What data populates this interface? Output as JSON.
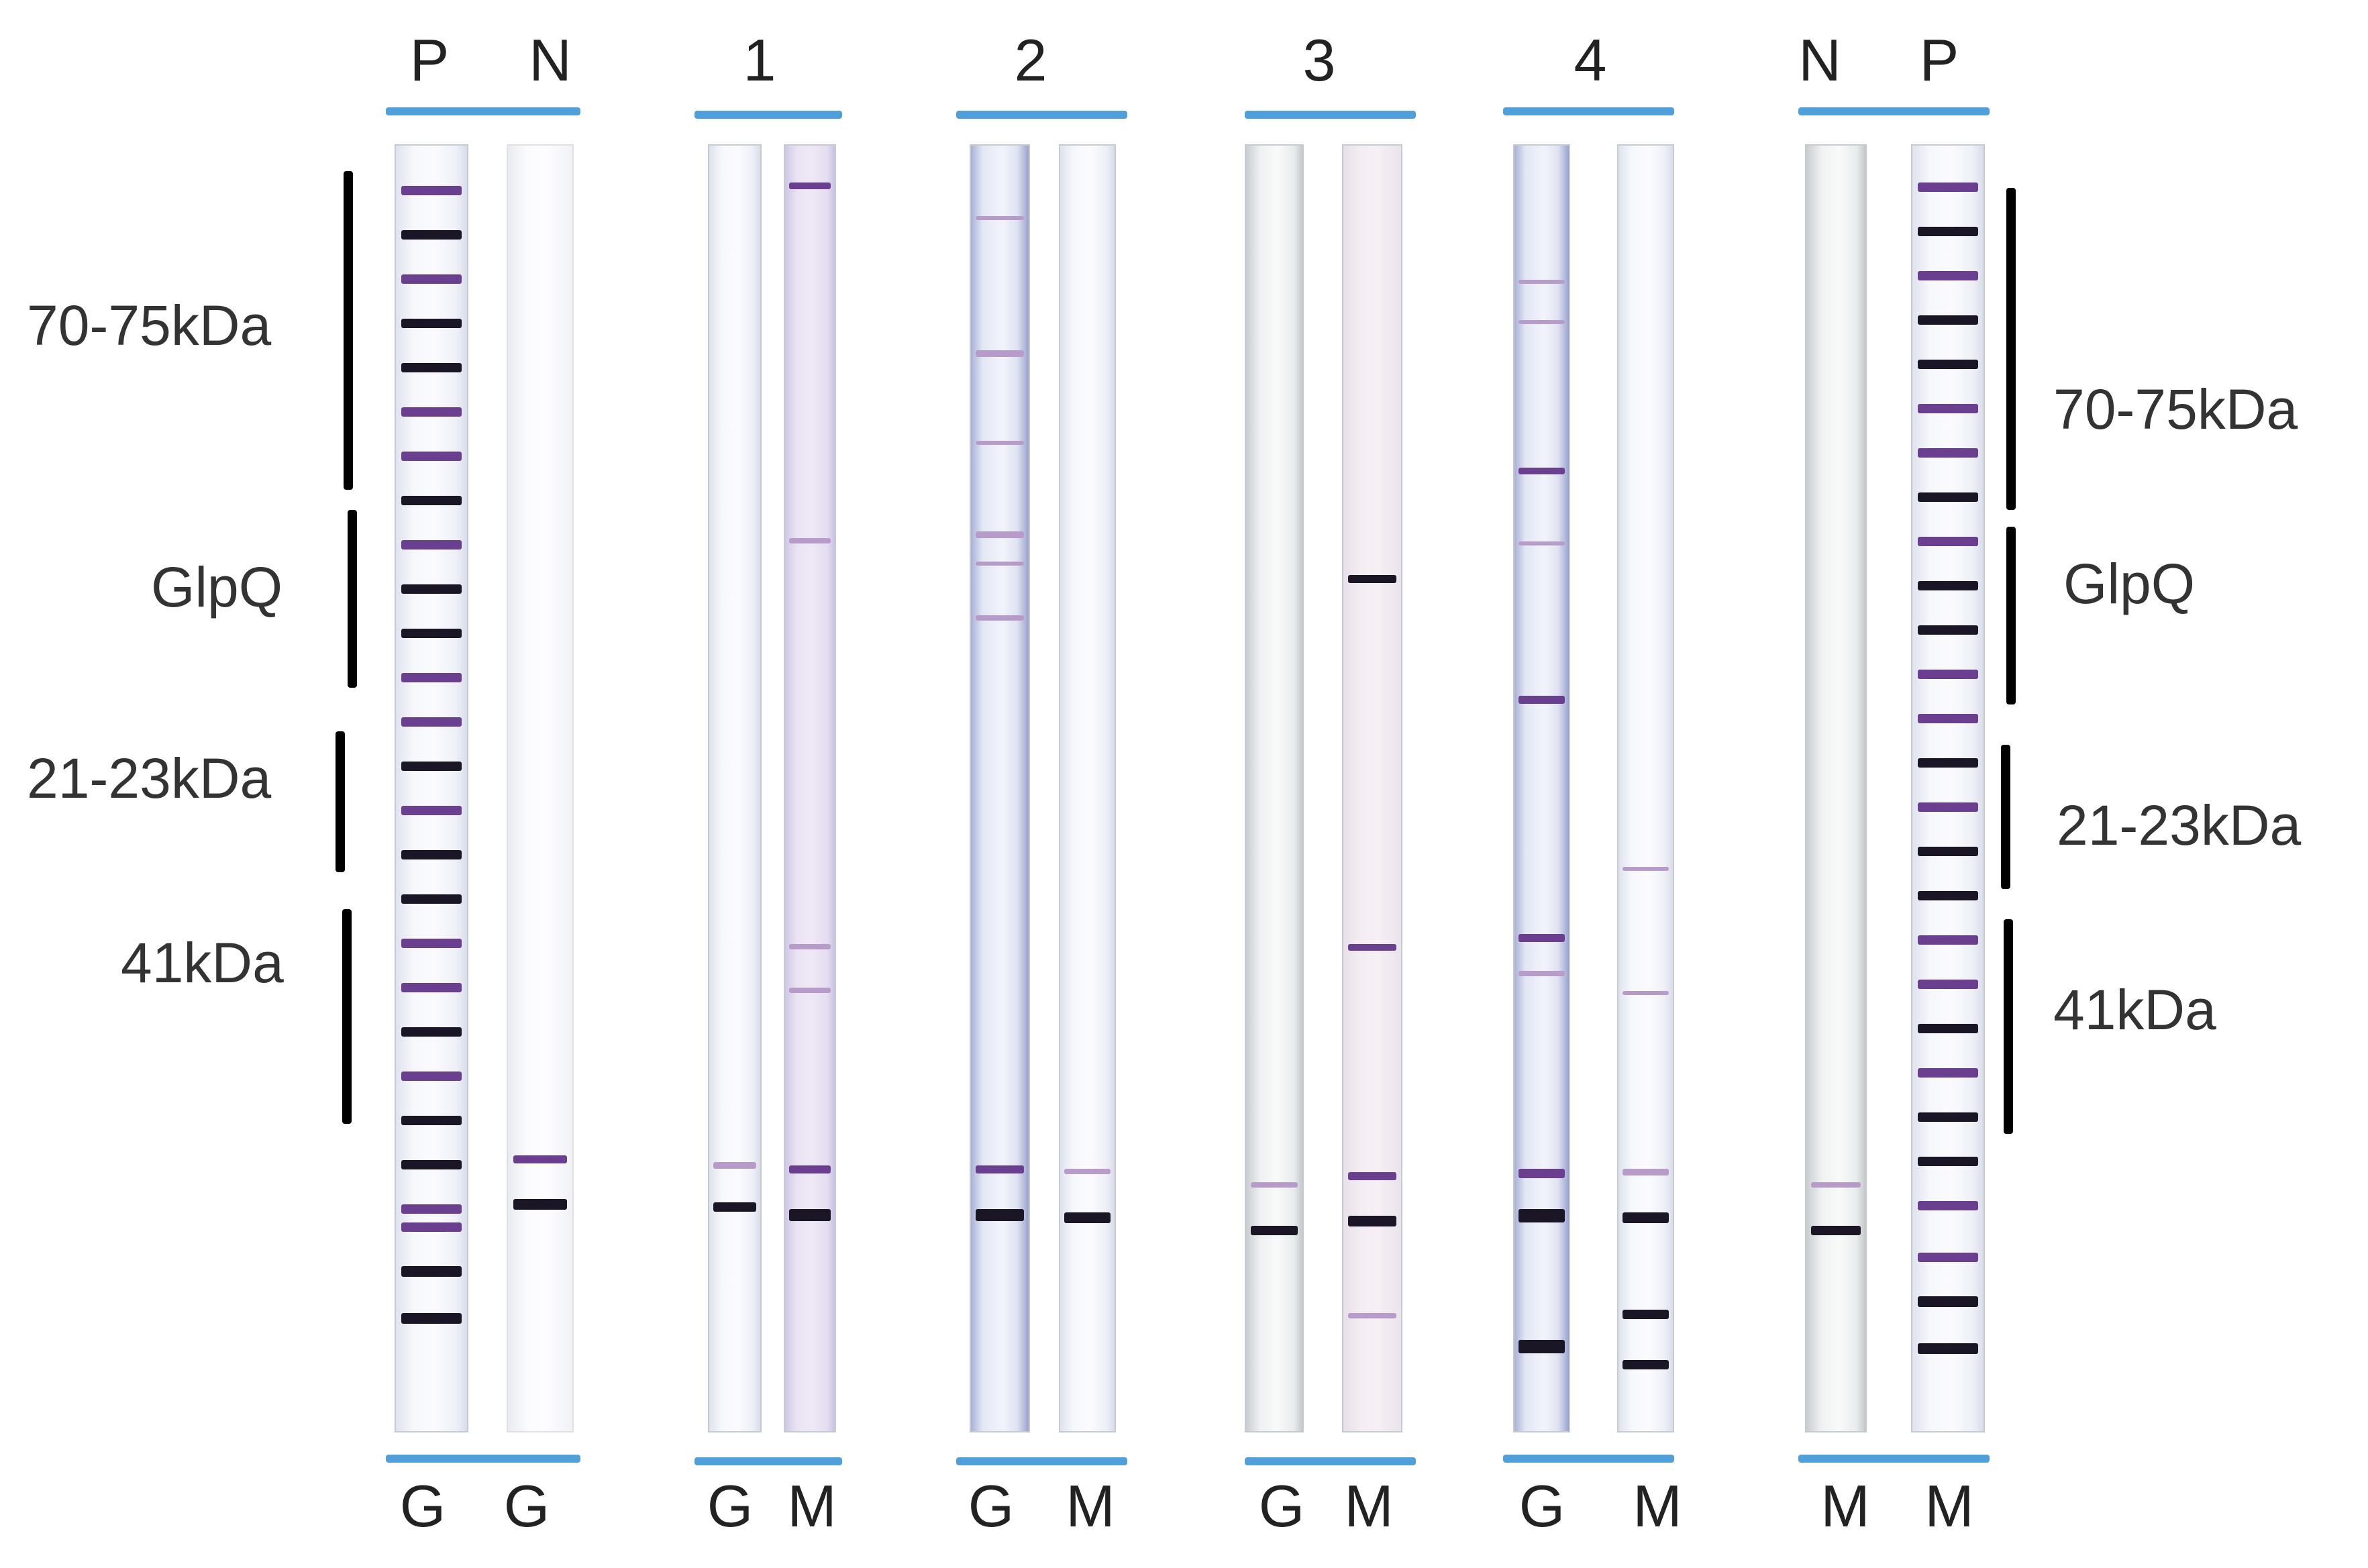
{
  "lanes_top": [
    "P",
    "N",
    "1",
    "2",
    "3",
    "4",
    "N",
    "P"
  ],
  "lanes_bottom": [
    "G",
    "G",
    "G",
    "M",
    "G",
    "M",
    "G",
    "M",
    "G",
    "M",
    "M",
    "M"
  ],
  "labels_left": [
    "70-75kDa",
    "GlpQ",
    "21-23kDa",
    "41kDa"
  ],
  "labels_right": [
    "70-75kDa",
    "GlpQ",
    "21-23kDa",
    "41kDa"
  ],
  "colors": {
    "bracket": "#4f9fdb",
    "band_dark": "#1b1626",
    "band_purple": "#6b3f8f",
    "band_faint": "#b79cc9",
    "marker_bar": "#000000"
  }
}
